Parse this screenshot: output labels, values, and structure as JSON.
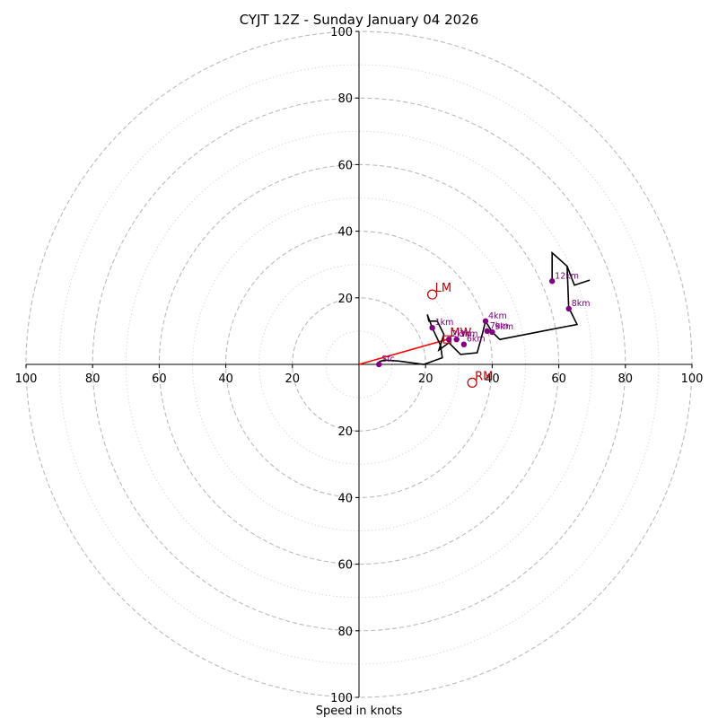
{
  "chart_data": {
    "type": "line",
    "subtype": "hodograph",
    "title": "CYJT 12Z - Sunday January 04 2026",
    "xlabel": "Speed in knots",
    "ylabel": "",
    "range": [
      -100,
      100
    ],
    "ring_major": [
      20,
      40,
      60,
      80,
      100
    ],
    "ring_minor": [
      10,
      30,
      50,
      70,
      90
    ],
    "x_tick_labels": [
      "100",
      "80",
      "60",
      "40",
      "20",
      "20",
      "40",
      "60",
      "80",
      "100"
    ],
    "x_tick_values": [
      -100,
      -80,
      -60,
      -40,
      -20,
      20,
      40,
      60,
      80,
      100
    ],
    "y_tick_labels": [
      "100",
      "80",
      "60",
      "40",
      "20",
      "20",
      "40",
      "60",
      "80",
      "100"
    ],
    "y_tick_values": [
      100,
      80,
      60,
      40,
      20,
      -20,
      -40,
      -60,
      -80,
      -100
    ],
    "trace": [
      [
        6,
        0.8
      ],
      [
        7.5,
        1.3
      ],
      [
        12,
        1.0
      ],
      [
        19.5,
        0
      ],
      [
        25,
        2
      ],
      [
        24.5,
        5.7
      ],
      [
        22,
        11
      ],
      [
        20.5,
        15
      ],
      [
        21,
        13
      ],
      [
        23.5,
        13
      ],
      [
        25.5,
        9
      ],
      [
        24,
        4.3
      ],
      [
        27,
        6.5
      ],
      [
        30.5,
        3
      ],
      [
        35.5,
        3.5
      ],
      [
        37,
        9
      ],
      [
        38,
        13
      ],
      [
        40,
        9.7
      ],
      [
        42.3,
        7.5
      ],
      [
        65.5,
        12
      ],
      [
        63.5,
        16
      ],
      [
        63,
        16.7
      ],
      [
        62.5,
        29.5
      ],
      [
        58,
        33.5
      ],
      [
        58,
        25
      ]
    ],
    "trace_branch": [
      [
        62.5,
        29.5
      ],
      [
        64.7,
        23.8
      ],
      [
        69.3,
        25.3
      ]
    ],
    "height_points": [
      {
        "label": "Sfc",
        "u": 6,
        "v": 0
      },
      {
        "label": "1km",
        "u": 22,
        "v": 11
      },
      {
        "label": "2km",
        "u": 27,
        "v": 7.5
      },
      {
        "label": "3km",
        "u": 29.3,
        "v": 7.5
      },
      {
        "label": "6km",
        "u": 31.5,
        "v": 6
      },
      {
        "label": "4km",
        "u": 38,
        "v": 13
      },
      {
        "label": "7km",
        "u": 38.5,
        "v": 10
      },
      {
        "label": "9km",
        "u": 40,
        "v": 9.7
      },
      {
        "label": "8km",
        "u": 63,
        "v": 16.7
      },
      {
        "label": "12km",
        "u": 58,
        "v": 25
      }
    ],
    "storm_motion": {
      "LM": {
        "label": "LM",
        "u": 22,
        "v": 21
      },
      "RM": {
        "label": "RM",
        "u": 34,
        "v": -5.5
      },
      "MW": {
        "label": "MW",
        "u": 26.5,
        "v": 7.5
      }
    },
    "shear_vector": {
      "from": [
        0,
        0
      ],
      "to": [
        26.5,
        7.5
      ]
    },
    "colors": {
      "trace": "#000000",
      "points": "#800080",
      "storm": "#c00000",
      "shear": "#ff0000",
      "ring": "#bbbbbb"
    }
  }
}
